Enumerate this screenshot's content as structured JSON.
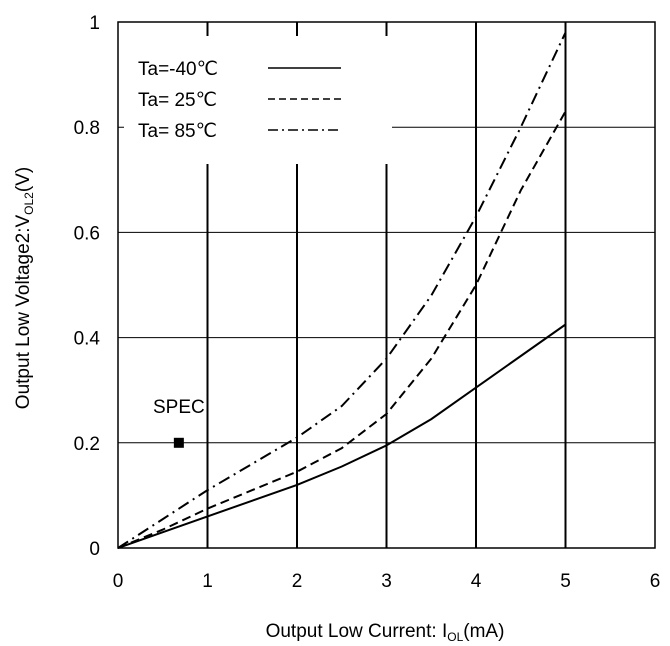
{
  "chart_data": {
    "type": "line",
    "xlabel": {
      "main": "Output Low Current: I",
      "sub": "OL",
      "tail": "(mA)"
    },
    "ylabel": {
      "main": "Output Low Voltage2:V",
      "sub": "OL2",
      "tail": "(V)"
    },
    "xlim": [
      0,
      6
    ],
    "ylim": [
      0,
      1
    ],
    "x_ticks": [
      "0",
      "1",
      "2",
      "3",
      "4",
      "5",
      "6"
    ],
    "y_ticks": [
      "0",
      "0.2",
      "0.4",
      "0.6",
      "0.8",
      "1"
    ],
    "grid": true,
    "legend_position": "top-left",
    "series": [
      {
        "name": "Ta=-40℃",
        "style": "solid",
        "x": [
          0,
          0.5,
          1,
          1.5,
          2,
          2.5,
          3,
          3.5,
          4,
          4.5,
          5
        ],
        "y": [
          0,
          0.03,
          0.06,
          0.09,
          0.12,
          0.155,
          0.195,
          0.245,
          0.305,
          0.365,
          0.425
        ]
      },
      {
        "name": "Ta= 25℃",
        "style": "dashed",
        "x": [
          0,
          0.5,
          1,
          1.5,
          2,
          2.5,
          3,
          3.5,
          4,
          4.5,
          5
        ],
        "y": [
          0,
          0.035,
          0.075,
          0.11,
          0.145,
          0.19,
          0.255,
          0.36,
          0.5,
          0.68,
          0.83
        ]
      },
      {
        "name": "Ta= 85℃",
        "style": "dashdot",
        "x": [
          0,
          0.5,
          1,
          1.5,
          2,
          2.5,
          3,
          3.5,
          4,
          4.5,
          5
        ],
        "y": [
          0,
          0.055,
          0.11,
          0.16,
          0.21,
          0.27,
          0.36,
          0.48,
          0.63,
          0.8,
          0.98
        ]
      }
    ],
    "annotations": [
      {
        "label": "SPEC",
        "x": 0.68,
        "y": 0.2,
        "marker": "square"
      }
    ]
  }
}
